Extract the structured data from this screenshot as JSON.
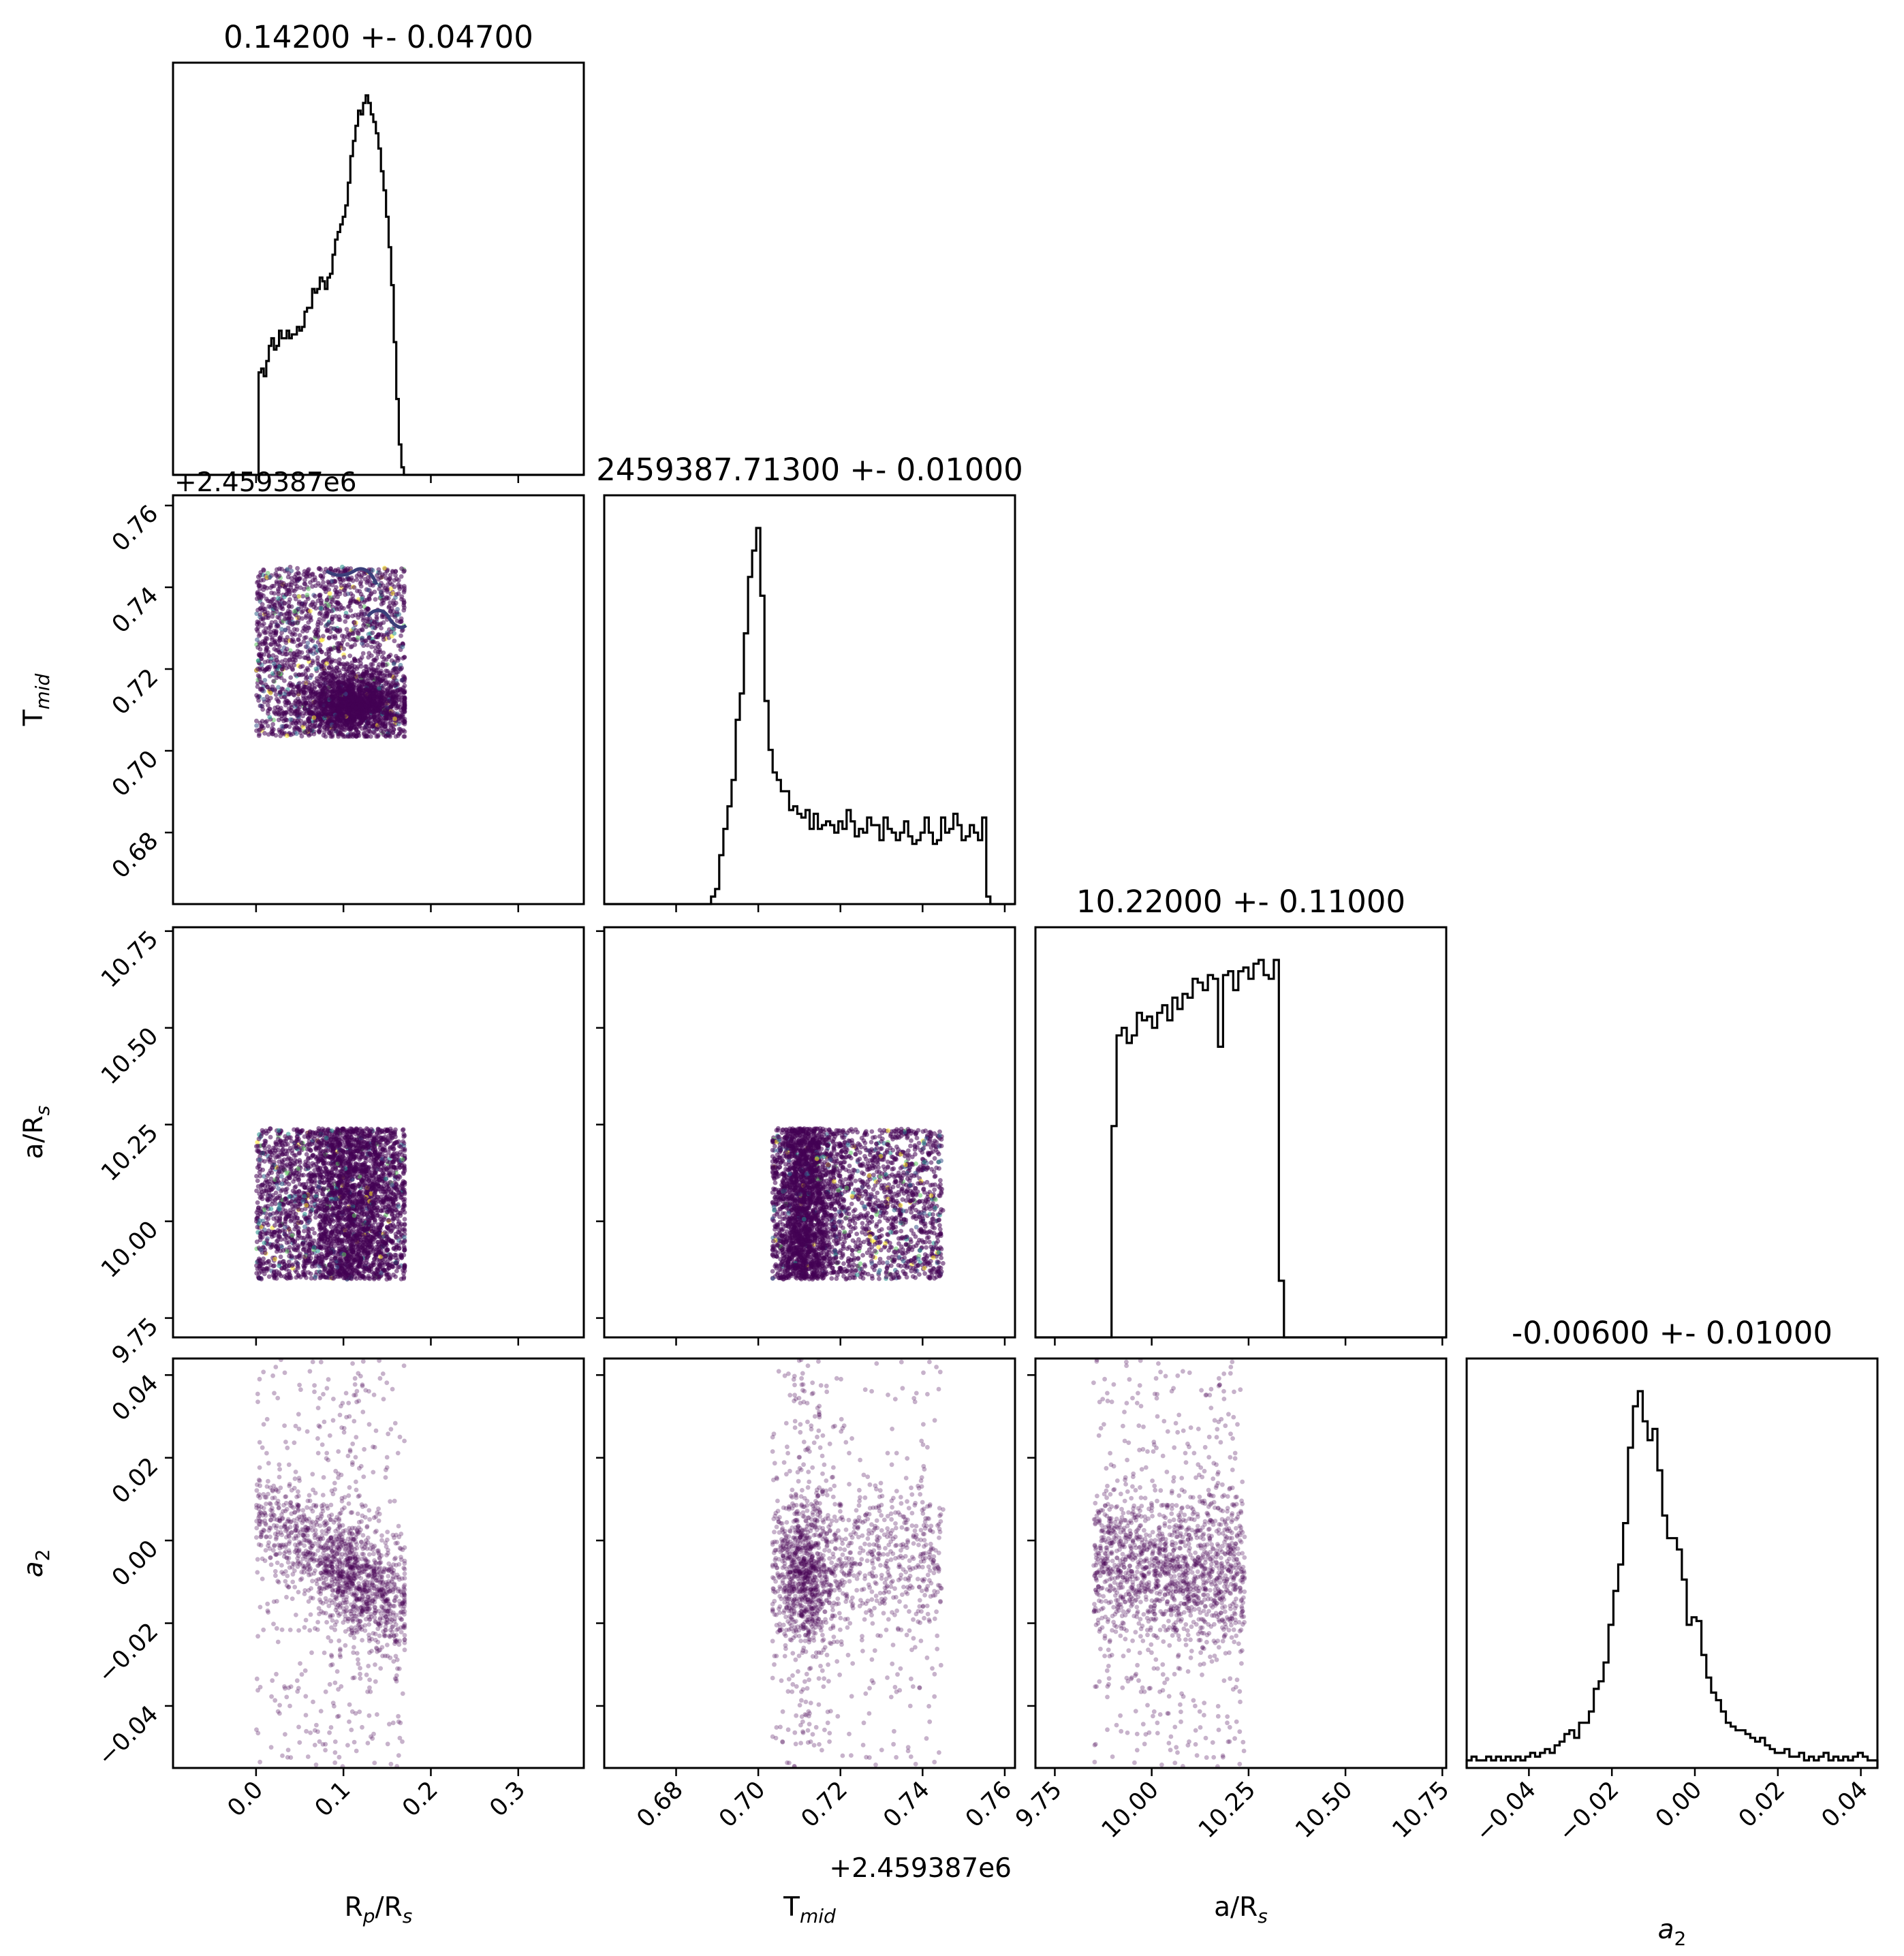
{
  "figure": {
    "parameters": [
      {
        "id": "rp",
        "label": "R",
        "sub": "p",
        "label_tail": "/R",
        "sub2": "s",
        "range": [
          -0.095,
          0.375
        ],
        "ticks": [
          0.0,
          0.1,
          0.2,
          0.3
        ],
        "tick_labels": [
          "0.0",
          "0.1",
          "0.2",
          "0.3"
        ]
      },
      {
        "id": "tmid",
        "label": "T",
        "sub": "mid",
        "label_tail": "",
        "sub2": "",
        "range": [
          0.6625,
          0.7625
        ],
        "ticks": [
          0.68,
          0.7,
          0.72,
          0.74,
          0.76
        ],
        "tick_labels": [
          "0.68",
          "0.70",
          "0.72",
          "0.74",
          "0.76"
        ]
      },
      {
        "id": "ars",
        "label": "a/R",
        "sub": "s",
        "label_tail": "",
        "sub2": "",
        "range": [
          9.7,
          10.76
        ],
        "ticks": [
          9.75,
          10.0,
          10.25,
          10.5,
          10.75
        ],
        "tick_labels": [
          "9.75",
          "10.00",
          "10.25",
          "10.50",
          "10.75"
        ]
      },
      {
        "id": "a2",
        "label": "a",
        "sub": "2",
        "label_tail": "",
        "sub2": "",
        "italic": true,
        "range": [
          -0.055,
          0.044
        ],
        "ticks": [
          -0.04,
          -0.02,
          0.0,
          0.02,
          0.04
        ],
        "tick_labels": [
          "−0.04",
          "−0.02",
          "0.00",
          "0.02",
          "0.04"
        ]
      }
    ],
    "titles": [
      "0.14200 +- 0.04700",
      "2459387.71300 +- 0.01000",
      "10.22000 +- 0.11000",
      "-0.00600 +- 0.01000"
    ],
    "offset_text_left": "+2.459387e6",
    "offset_text_bottom": "+2.459387e6",
    "colors": {
      "points": "#440154",
      "hist": "#000000",
      "contour": "#3b3f7a"
    }
  },
  "chart_data": {
    "type": "corner",
    "histograms": [
      {
        "param": "R_p/R_s",
        "x_start": 0.0,
        "x_end": 0.175,
        "relative_counts": [
          0,
          0.27,
          0.28,
          0.26,
          0.3,
          0.34,
          0.36,
          0.33,
          0.34,
          0.38,
          0.36,
          0.36,
          0.38,
          0.36,
          0.37,
          0.37,
          0.39,
          0.38,
          0.39,
          0.43,
          0.44,
          0.44,
          0.49,
          0.48,
          0.49,
          0.52,
          0.51,
          0.49,
          0.52,
          0.53,
          0.58,
          0.62,
          0.64,
          0.66,
          0.68,
          0.71,
          0.77,
          0.84,
          0.88,
          0.92,
          0.96,
          0.95,
          0.98,
          1.0,
          0.98,
          0.95,
          0.93,
          0.9,
          0.86,
          0.8,
          0.75,
          0.68,
          0.6,
          0.5,
          0.35,
          0.2,
          0.08,
          0.02,
          0,
          0
        ]
      },
      {
        "param": "T_mid",
        "x_start": 0.6625,
        "x_end": 0.7625,
        "relative_counts": [
          0,
          0,
          0,
          0,
          0,
          0,
          0,
          0,
          0,
          0,
          0,
          0,
          0,
          0,
          0,
          0,
          0,
          0,
          0,
          0,
          0,
          0,
          0,
          0,
          0,
          0,
          0.02,
          0.04,
          0.13,
          0.2,
          0.26,
          0.33,
          0.49,
          0.56,
          0.72,
          0.87,
          0.94,
          1.0,
          0.82,
          0.54,
          0.41,
          0.35,
          0.33,
          0.3,
          0.3,
          0.25,
          0.26,
          0.24,
          0.23,
          0.25,
          0.2,
          0.24,
          0.2,
          0.21,
          0.22,
          0.21,
          0.19,
          0.22,
          0.2,
          0.25,
          0.22,
          0.18,
          0.2,
          0.19,
          0.23,
          0.21,
          0.21,
          0.17,
          0.23,
          0.2,
          0.19,
          0.17,
          0.19,
          0.22,
          0.18,
          0.16,
          0.17,
          0.19,
          0.23,
          0.19,
          0.16,
          0.17,
          0.23,
          0.19,
          0.2,
          0.24,
          0.21,
          0.17,
          0.18,
          0.21,
          0.19,
          0.17,
          0.23,
          0.02,
          0,
          0,
          0,
          0,
          0,
          0
        ]
      },
      {
        "param": "a/R_s",
        "x_start": 9.7,
        "x_end": 10.76,
        "relative_counts": [
          0,
          0,
          0,
          0,
          0,
          0,
          0,
          0,
          0,
          0,
          0,
          0,
          0,
          0,
          0,
          0.56,
          0.8,
          0.82,
          0.78,
          0.8,
          0.86,
          0.84,
          0.85,
          0.82,
          0.86,
          0.88,
          0.84,
          0.9,
          0.87,
          0.91,
          0.9,
          0.95,
          0.94,
          0.92,
          0.96,
          0.95,
          0.77,
          0.96,
          0.97,
          0.92,
          0.97,
          0.98,
          0.95,
          0.99,
          1.0,
          0.96,
          0.95,
          1.0,
          0.15,
          0,
          0,
          0,
          0,
          0,
          0,
          0,
          0,
          0,
          0,
          0,
          0,
          0,
          0,
          0,
          0,
          0,
          0,
          0,
          0,
          0,
          0,
          0,
          0,
          0,
          0,
          0,
          0,
          0,
          0,
          0,
          0
        ]
      },
      {
        "param": "a_2",
        "x_start": -0.055,
        "x_end": 0.044,
        "relative_counts": [
          0.02,
          0.03,
          0.02,
          0.02,
          0.03,
          0.02,
          0.03,
          0.02,
          0.03,
          0.02,
          0.03,
          0.02,
          0.03,
          0.04,
          0.03,
          0.04,
          0.05,
          0.04,
          0.06,
          0.07,
          0.09,
          0.1,
          0.08,
          0.12,
          0.12,
          0.15,
          0.21,
          0.23,
          0.28,
          0.38,
          0.47,
          0.54,
          0.65,
          0.85,
          0.96,
          1.0,
          0.92,
          0.87,
          0.9,
          0.79,
          0.67,
          0.61,
          0.61,
          0.58,
          0.5,
          0.38,
          0.4,
          0.39,
          0.3,
          0.24,
          0.2,
          0.18,
          0.15,
          0.12,
          0.11,
          0.1,
          0.1,
          0.09,
          0.08,
          0.07,
          0.08,
          0.06,
          0.05,
          0.04,
          0.04,
          0.05,
          0.03,
          0.03,
          0.04,
          0.02,
          0.03,
          0.02,
          0.03,
          0.04,
          0.02,
          0.03,
          0.02,
          0.03,
          0.02,
          0.03,
          0.04,
          0.03,
          0.02,
          0.02
        ]
      }
    ],
    "scatter_regions": [
      {
        "x": "R_p/R_s",
        "y": "T_mid",
        "x_range": [
          0.0,
          0.17
        ],
        "y_range": [
          0.704,
          0.745
        ],
        "dense_core": {
          "x": [
            0.08,
            0.17
          ],
          "y": [
            0.703,
            0.718
          ]
        }
      },
      {
        "x": "R_p/R_s",
        "y": "a/R_s",
        "x_range": [
          0.0,
          0.17
        ],
        "y_range": [
          9.85,
          10.24
        ]
      },
      {
        "x": "T_mid",
        "y": "a/R_s",
        "x_range": [
          0.7035,
          0.745
        ],
        "y_range": [
          9.85,
          10.24
        ],
        "dense_core": {
          "x": [
            0.709,
            0.716
          ],
          "y": [
            9.85,
            10.24
          ]
        }
      },
      {
        "x": "R_p/R_s",
        "y": "a_2",
        "x_range": [
          0.0,
          0.17
        ],
        "y_range": [
          -0.055,
          0.044
        ],
        "trend": "negative correlation"
      },
      {
        "x": "T_mid",
        "y": "a_2",
        "x_range": [
          0.7035,
          0.745
        ],
        "y_range": [
          -0.055,
          0.044
        ],
        "dense_core": {
          "x": [
            0.705,
            0.725
          ],
          "y": [
            -0.018,
            0.01
          ]
        }
      },
      {
        "x": "a/R_s",
        "y": "a_2",
        "x_range": [
          9.85,
          10.24
        ],
        "y_range": [
          -0.055,
          0.044
        ],
        "dense_core": {
          "x": [
            9.85,
            10.24
          ],
          "y": [
            -0.015,
            0.004
          ]
        }
      }
    ]
  }
}
